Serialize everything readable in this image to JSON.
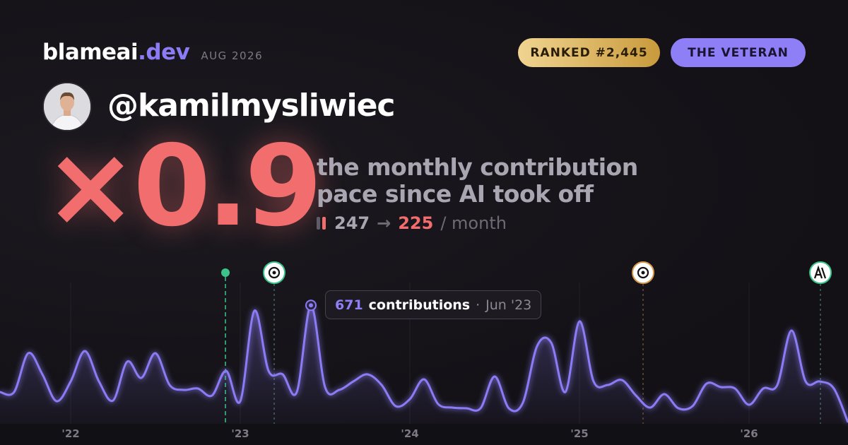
{
  "header": {
    "brand": "blameai",
    "brand_suffix": ".dev",
    "date": "AUG 2026",
    "rank": "RANKED #2,445",
    "badge": "THE VETERAN"
  },
  "profile": {
    "handle": "@kamilmysliwiec"
  },
  "headline": {
    "multiplier": "×0.9",
    "description_line1": "the monthly contribution",
    "description_line2": "pace since AI took off",
    "before": "247",
    "arrow": "→",
    "after": "225",
    "unit": "/ month"
  },
  "tooltip": {
    "label": "contributions",
    "separator": "·",
    "date": "Jun '23"
  },
  "chart_data": {
    "type": "line",
    "categories": [
      null,
      null,
      null,
      null,
      null,
      "'22",
      null,
      null,
      null,
      null,
      null,
      null,
      null,
      null,
      null,
      null,
      null,
      "'23",
      null,
      null,
      null,
      null,
      null,
      null,
      null,
      null,
      null,
      null,
      null,
      "'24",
      null,
      null,
      null,
      null,
      null,
      null,
      null,
      null,
      null,
      null,
      null,
      "'25",
      null,
      null,
      null,
      null,
      null,
      null,
      null,
      null,
      null,
      null,
      null,
      "'26",
      null,
      null,
      null,
      null,
      null,
      null,
      null
    ],
    "series": [
      {
        "color": "#8b7cf6",
        "values": [
          180,
          180,
          400,
          280,
          128,
          240,
          412,
          240,
          132,
          352,
          260,
          400,
          220,
          192,
          200,
          160,
          300,
          128,
          640,
          300,
          280,
          180,
          671,
          208,
          192,
          240,
          280,
          220,
          100,
          140,
          252,
          112,
          92,
          88,
          88,
          268,
          88,
          120,
          440,
          460,
          180,
          580,
          240,
          220,
          248,
          160,
          92,
          168,
          88,
          100,
          228,
          208,
          200,
          108,
          200,
          220,
          528,
          240,
          240,
          200,
          8
        ]
      }
    ],
    "ylim": [
      0,
      840
    ]
  }
}
